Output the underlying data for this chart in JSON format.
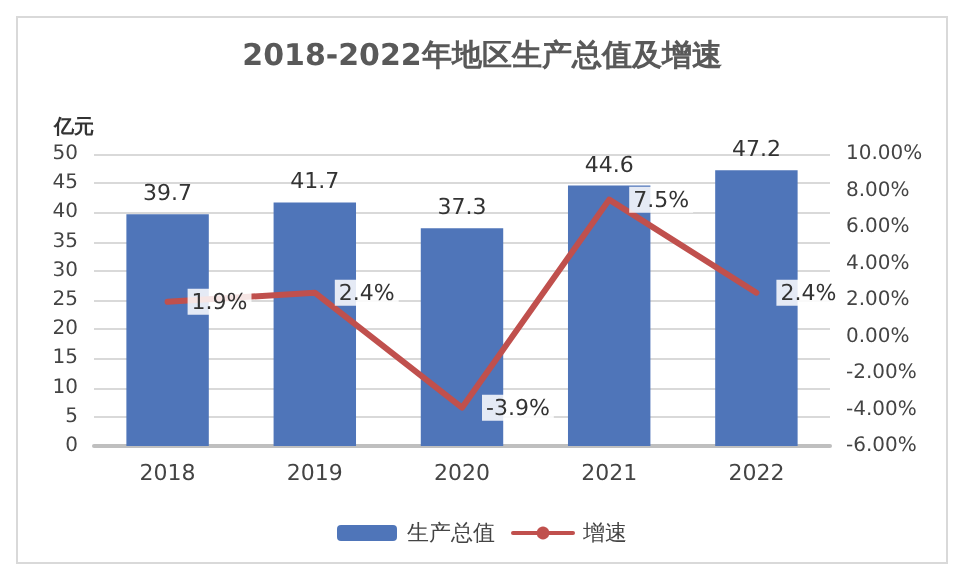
{
  "chart_data": {
    "type": "bar",
    "title": "2018-2022年地区生产总值及增速",
    "ylabel": "亿元",
    "categories": [
      "2018",
      "2019",
      "2020",
      "2021",
      "2022"
    ],
    "series": [
      {
        "name": "生产总值",
        "color": "#4f75b9",
        "values": [
          39.7,
          41.7,
          37.3,
          44.6,
          47.2
        ],
        "value_labels": [
          "39.7",
          "41.7",
          "37.3",
          "44.6",
          "47.2"
        ]
      },
      {
        "name": "增速",
        "type": "line",
        "axis": "y2",
        "color": "#c0504d",
        "values": [
          1.9,
          2.4,
          -3.9,
          7.5,
          2.4
        ],
        "value_labels": [
          "1.9%",
          "2.4%",
          "-3.9%",
          "7.5%",
          "2.4%"
        ]
      }
    ],
    "ylim": [
      0,
      50
    ],
    "yticks": [
      0,
      5,
      10,
      15,
      20,
      25,
      30,
      35,
      40,
      45,
      50
    ],
    "y2lim": [
      -6,
      10
    ],
    "y2ticks": [
      {
        "value": -6,
        "label": "-6.00%"
      },
      {
        "value": -4,
        "label": "-4.00%"
      },
      {
        "value": -2,
        "label": "-2.00%"
      },
      {
        "value": 0,
        "label": "0.00%"
      },
      {
        "value": 2,
        "label": "2.00%"
      },
      {
        "value": 4,
        "label": "4.00%"
      },
      {
        "value": 6,
        "label": "6.00%"
      },
      {
        "value": 8,
        "label": "8.00%"
      },
      {
        "value": 10,
        "label": "10.00%"
      }
    ],
    "grid": "y",
    "legend": "bottom",
    "marker": "none",
    "line_style": "solid"
  }
}
